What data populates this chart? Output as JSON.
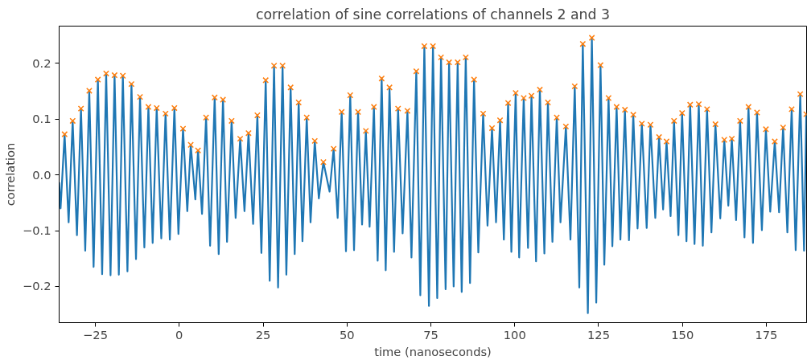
{
  "chart_data": {
    "type": "line",
    "title": "correlation of sine correlations of channels 2 and 3",
    "xlabel": "time (nanoseconds)",
    "ylabel": "correlation",
    "xlim": [
      -35.8,
      187.0
    ],
    "ylim": [
      -0.265,
      0.267
    ],
    "xticks": [
      {
        "value": -25,
        "label": "−25"
      },
      0,
      25,
      50,
      75,
      100,
      125,
      150,
      175
    ],
    "yticks": [
      {
        "value": -0.2,
        "label": "−0.2"
      },
      {
        "value": -0.1,
        "label": "−0.1"
      },
      {
        "value": 0,
        "label": "0.0"
      },
      0.1,
      0.2
    ],
    "grid": false,
    "series": [
      {
        "color": "#1f77b4",
        "line_style": "solid",
        "marker": "none",
        "x": [
          -35.8,
          -35.37,
          -34.17,
          -32.97,
          -31.77,
          -30.49,
          -29.29,
          -28.02,
          -26.82,
          -25.53,
          -24.25,
          -22.98,
          -21.78,
          -20.48,
          -19.28,
          -18.01,
          -16.81,
          -15.44,
          -14.24,
          -12.89,
          -11.69,
          -10.4,
          -9.19,
          -7.92,
          -6.72,
          -5.35,
          -4.08,
          -2.8,
          -1.44,
          -0.24,
          1.13,
          2.4,
          3.43,
          4.8,
          5.6,
          6.79,
          8.0,
          9.2,
          10.56,
          11.76,
          13.04,
          14.24,
          15.61,
          16.81,
          18.17,
          19.45,
          20.65,
          22.02,
          23.29,
          24.49,
          25.77,
          26.96,
          28.26,
          29.46,
          30.8,
          31.93,
          33.2,
          34.41,
          35.6,
          36.73,
          38.0,
          39.14,
          40.4,
          41.61,
          42.97,
          44.82,
          46.02,
          47.22,
          48.42,
          49.7,
          50.97,
          52.1,
          53.3,
          54.5,
          55.63,
          56.74,
          58.03,
          59.14,
          60.34,
          61.54,
          62.67,
          64.03,
          65.23,
          66.58,
          68.02,
          69.22,
          70.66,
          71.86,
          73.06,
          74.43,
          75.63,
          76.9,
          78.03,
          79.4,
          80.43,
          81.8,
          82.99,
          84.2,
          85.4,
          86.68,
          87.87,
          89.15,
          90.59,
          91.89,
          93.23,
          94.43,
          95.63,
          96.76,
          98.03,
          99.0,
          100.28,
          101.32,
          102.68,
          103.96,
          104.99,
          106.36,
          107.49,
          108.84,
          109.89,
          111.24,
          112.53,
          113.64,
          115.25,
          116.61,
          117.89,
          119.25,
          120.29,
          121.8,
          122.99,
          124.3,
          125.57,
          126.7,
          127.97,
          129.1,
          130.37,
          131.5,
          132.85,
          134.05,
          135.34,
          136.61,
          137.89,
          139.33,
          140.46,
          141.9,
          143.02,
          144.23,
          145.26,
          146.46,
          147.49,
          148.79,
          149.89,
          151.19,
          152.29,
          153.59,
          154.86,
          156.06,
          157.33,
          158.63,
          159.83,
          161.27,
          162.47,
          163.67,
          164.71,
          165.98,
          167.18,
          168.48,
          169.68,
          171.02,
          172.23,
          173.67,
          174.87,
          176.16,
          177.51,
          178.8,
          180.0,
          181.27,
          182.55,
          183.75,
          185.11,
          186.24,
          186.9
        ],
        "values": [
          -0.013,
          -0.06,
          0.073,
          -0.085,
          0.097,
          -0.108,
          0.119,
          -0.136,
          0.151,
          -0.165,
          0.171,
          -0.178,
          0.182,
          -0.18,
          0.179,
          -0.179,
          0.178,
          -0.173,
          0.163,
          -0.151,
          0.14,
          -0.13,
          0.122,
          -0.122,
          0.12,
          -0.114,
          0.11,
          -0.116,
          0.12,
          -0.106,
          0.083,
          -0.065,
          0.054,
          -0.044,
          0.044,
          -0.07,
          0.103,
          -0.127,
          0.139,
          -0.142,
          0.135,
          -0.12,
          0.097,
          -0.077,
          0.065,
          -0.065,
          0.075,
          -0.088,
          0.107,
          -0.14,
          0.17,
          -0.19,
          0.196,
          -0.202,
          0.196,
          -0.179,
          0.157,
          -0.142,
          0.13,
          -0.119,
          0.103,
          -0.085,
          0.061,
          -0.042,
          0.023,
          -0.03,
          0.047,
          -0.077,
          0.113,
          -0.137,
          0.143,
          -0.135,
          0.113,
          -0.089,
          0.079,
          -0.093,
          0.122,
          -0.154,
          0.173,
          -0.171,
          0.157,
          -0.138,
          0.119,
          -0.105,
          0.115,
          -0.148,
          0.186,
          -0.216,
          0.231,
          -0.235,
          0.231,
          -0.221,
          0.211,
          -0.205,
          0.202,
          -0.2,
          0.202,
          -0.21,
          0.211,
          -0.194,
          0.171,
          -0.139,
          0.11,
          -0.091,
          0.084,
          -0.085,
          0.098,
          -0.116,
          0.129,
          -0.138,
          0.147,
          -0.148,
          0.138,
          -0.131,
          0.142,
          -0.155,
          0.153,
          -0.141,
          0.13,
          -0.12,
          0.103,
          -0.085,
          0.087,
          -0.116,
          0.159,
          -0.202,
          0.235,
          -0.248,
          0.246,
          -0.229,
          0.197,
          -0.161,
          0.138,
          -0.128,
          0.122,
          -0.116,
          0.117,
          -0.117,
          0.108,
          -0.096,
          0.092,
          -0.095,
          0.09,
          -0.077,
          0.068,
          -0.062,
          0.06,
          -0.074,
          0.097,
          -0.108,
          0.111,
          -0.119,
          0.126,
          -0.124,
          0.127,
          -0.127,
          0.118,
          -0.103,
          0.091,
          -0.078,
          0.063,
          -0.055,
          0.065,
          -0.081,
          0.097,
          -0.112,
          0.122,
          -0.122,
          0.112,
          -0.099,
          0.082,
          -0.066,
          0.06,
          -0.067,
          0.085,
          -0.103,
          0.118,
          -0.135,
          0.145,
          -0.136,
          0.109
        ]
      },
      {
        "type": "scatter",
        "color": "#ff7f0e",
        "marker": "cross",
        "x": [
          -34.17,
          -31.77,
          -29.29,
          -26.82,
          -24.25,
          -21.78,
          -19.28,
          -16.81,
          -14.24,
          -11.69,
          -9.19,
          -6.72,
          -4.08,
          -1.44,
          1.13,
          3.43,
          5.6,
          8.0,
          10.56,
          13.04,
          15.61,
          18.17,
          20.65,
          23.29,
          25.77,
          28.26,
          30.8,
          33.2,
          35.6,
          38.0,
          40.4,
          42.97,
          46.02,
          48.42,
          50.97,
          53.3,
          55.63,
          58.03,
          60.34,
          62.67,
          65.23,
          68.02,
          70.66,
          73.06,
          75.63,
          78.03,
          80.43,
          82.99,
          85.4,
          87.87,
          90.59,
          93.23,
          95.63,
          98.03,
          100.28,
          102.68,
          104.99,
          107.49,
          109.89,
          112.53,
          115.25,
          117.89,
          120.29,
          122.99,
          125.57,
          127.97,
          130.37,
          132.85,
          135.34,
          137.89,
          140.46,
          143.02,
          145.26,
          147.49,
          149.89,
          152.29,
          154.86,
          157.33,
          159.83,
          162.47,
          164.71,
          167.18,
          169.68,
          172.23,
          174.87,
          177.51,
          180.0,
          182.55,
          185.11,
          186.9
        ],
        "values": [
          0.073,
          0.097,
          0.119,
          0.151,
          0.171,
          0.182,
          0.179,
          0.178,
          0.163,
          0.14,
          0.122,
          0.12,
          0.11,
          0.12,
          0.083,
          0.054,
          0.044,
          0.103,
          0.139,
          0.135,
          0.097,
          0.065,
          0.075,
          0.107,
          0.17,
          0.196,
          0.196,
          0.157,
          0.13,
          0.103,
          0.061,
          0.023,
          0.047,
          0.113,
          0.143,
          0.113,
          0.079,
          0.122,
          0.173,
          0.157,
          0.119,
          0.115,
          0.186,
          0.231,
          0.231,
          0.211,
          0.202,
          0.202,
          0.211,
          0.171,
          0.11,
          0.084,
          0.098,
          0.129,
          0.147,
          0.138,
          0.142,
          0.153,
          0.13,
          0.103,
          0.087,
          0.159,
          0.235,
          0.246,
          0.197,
          0.138,
          0.122,
          0.117,
          0.108,
          0.092,
          0.09,
          0.068,
          0.06,
          0.097,
          0.111,
          0.126,
          0.127,
          0.118,
          0.091,
          0.063,
          0.065,
          0.097,
          0.122,
          0.112,
          0.082,
          0.06,
          0.085,
          0.118,
          0.145,
          0.109
        ]
      }
    ]
  }
}
